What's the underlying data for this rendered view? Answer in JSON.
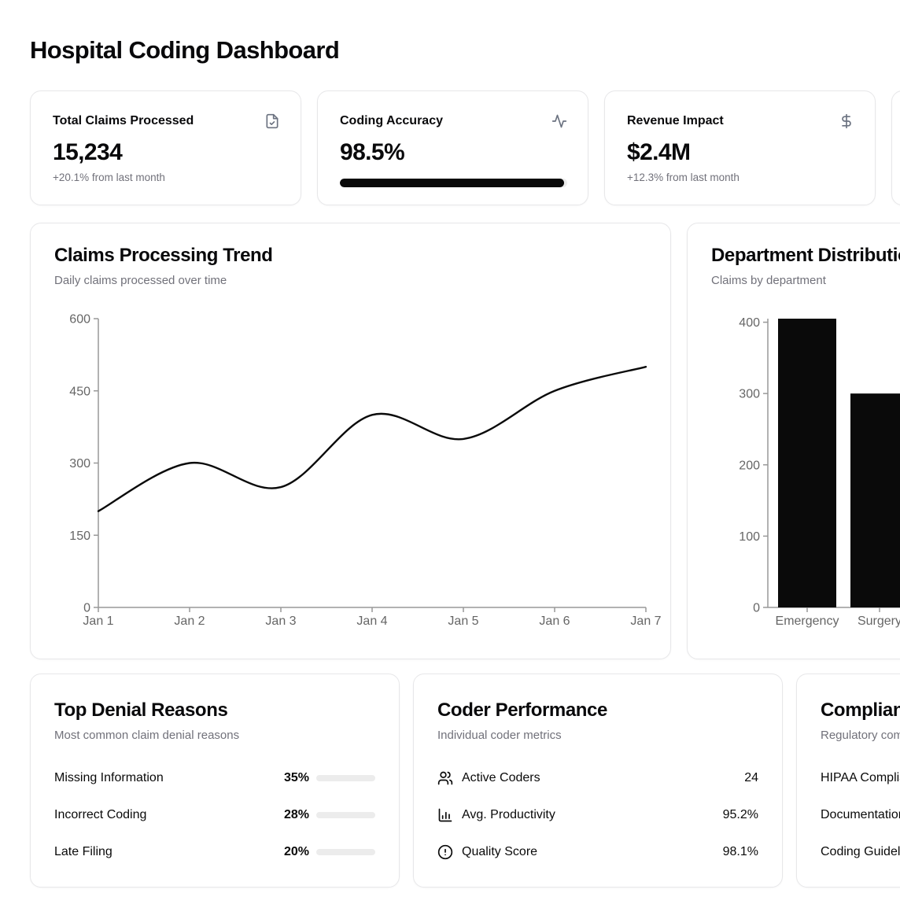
{
  "page": {
    "title": "Hospital Coding Dashboard"
  },
  "stat_cards": [
    {
      "icon": "file-check-icon",
      "label": "Total Claims Processed",
      "value": "15,234",
      "change": "+20.1% from last month"
    },
    {
      "icon": "activity-icon",
      "label": "Coding Accuracy",
      "value": "98.5%",
      "progress_pct": 98.5
    },
    {
      "icon": "dollar-sign-icon",
      "label": "Revenue Impact",
      "value": "$2.4M",
      "change": "+12.3% from last month"
    }
  ],
  "chart_data": [
    {
      "type": "line",
      "title": "Claims Processing Trend",
      "subtitle": "Daily claims processed over time",
      "x": [
        "Jan 1",
        "Jan 2",
        "Jan 3",
        "Jan 4",
        "Jan 5",
        "Jan 6",
        "Jan 7"
      ],
      "values": [
        200,
        300,
        250,
        400,
        350,
        450,
        500
      ],
      "xlabel": "",
      "ylabel": "",
      "ylim": [
        0,
        600
      ],
      "yticks": [
        0,
        150,
        300,
        450,
        600
      ],
      "grid": false,
      "legend": false,
      "smooth": true,
      "line_color": "#0a0a0a"
    },
    {
      "type": "bar",
      "title": "Department Distribution",
      "subtitle": "Claims by department",
      "categories": [
        "Emergency",
        "Surgery"
      ],
      "values": [
        405,
        300
      ],
      "xlabel": "",
      "ylabel": "",
      "ylim": [
        0,
        405
      ],
      "yticks": [
        0,
        100,
        200,
        300,
        400
      ],
      "grid": false,
      "legend": false,
      "bar_color": "#0a0a0a"
    }
  ],
  "denials": {
    "title": "Top Denial Reasons",
    "subtitle": "Most common claim denial reasons",
    "rows": [
      {
        "label": "Missing Information",
        "pct_label": "35%",
        "pct": 35
      },
      {
        "label": "Incorrect Coding",
        "pct_label": "28%",
        "pct": 28
      },
      {
        "label": "Late Filing",
        "pct_label": "20%",
        "pct": 20
      }
    ]
  },
  "coder_performance": {
    "title": "Coder Performance",
    "subtitle": "Individual coder metrics",
    "rows": [
      {
        "icon": "users-icon",
        "label": "Active Coders",
        "value": "24"
      },
      {
        "icon": "bar-chart-icon",
        "label": "Avg. Productivity",
        "value": "95.2%"
      },
      {
        "icon": "alert-circle-icon",
        "label": "Quality Score",
        "value": "98.1%"
      }
    ]
  },
  "compliance": {
    "title": "Compliance",
    "subtitle": "Regulatory compliance status",
    "rows": [
      {
        "label": "HIPAA Compliance"
      },
      {
        "label": "Documentation"
      },
      {
        "label": "Coding Guidelines"
      }
    ]
  },
  "colors": {
    "foreground": "#0a0a0a",
    "muted_text": "#71717a",
    "card_border": "#e7e7e9",
    "axis_line": "#999999",
    "axis_text": "#666666",
    "track": "#ececec"
  }
}
